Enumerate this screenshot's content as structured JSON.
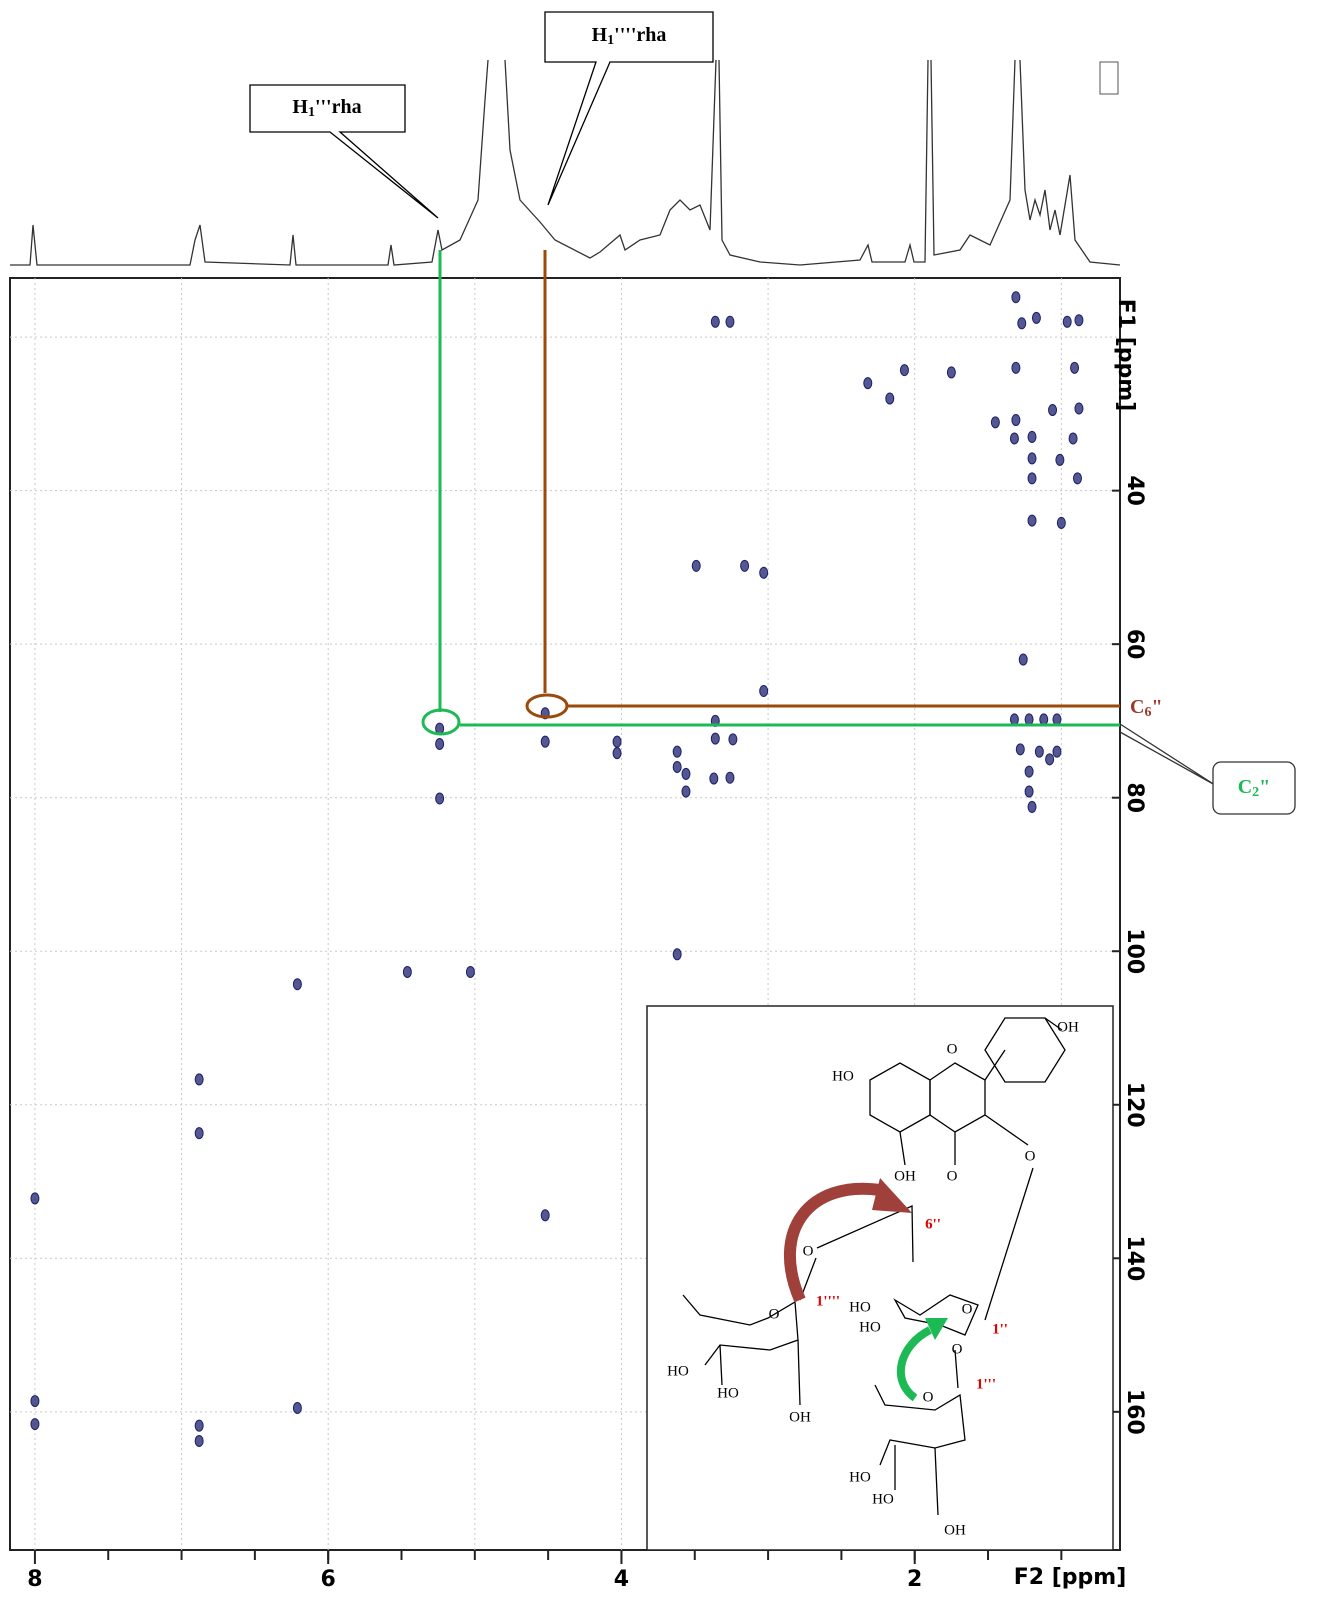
{
  "chart_data": {
    "type": "scatter",
    "x_label": "F2 [ppm]",
    "y_label": "F1 [ppm]",
    "xlim": [
      8.17,
      0.6
    ],
    "ylim": [
      12.3,
      178
    ],
    "xticks": [
      8,
      6,
      4,
      2
    ],
    "xminor": [
      7.5,
      7,
      6.5,
      6,
      5.5,
      5,
      4.5,
      4,
      3.5,
      3,
      2.5,
      2,
      1.5,
      1
    ],
    "xgrid": [
      8,
      7,
      6,
      5,
      4,
      3,
      2,
      1
    ],
    "yticks": [
      40,
      60,
      80,
      100,
      120,
      140,
      160
    ],
    "ygrid": [
      20,
      40,
      60,
      80,
      100,
      120,
      140,
      160
    ],
    "grid": true,
    "color": "#1b1f6b",
    "x": [
      5.24,
      5.24,
      5.24,
      4.52,
      4.52,
      3.36,
      3.26,
      3.49,
      3.16,
      3.03,
      3.03,
      3.36,
      3.36,
      3.24,
      4.03,
      4.03,
      3.62,
      3.62,
      3.56,
      3.56,
      3.37,
      3.26,
      2.32,
      2.17,
      2.07,
      1.75,
      1.31,
      1.27,
      1.17,
      0.96,
      0.88,
      0.91,
      1.31,
      1.06,
      0.88,
      1.31,
      1.2,
      0.92,
      1.2,
      1.01,
      0.89,
      1.2,
      1.2,
      1.0,
      1.45,
      1.32,
      1.32,
      1.22,
      1.12,
      1.03,
      1.28,
      1.15,
      1.03,
      1.22,
      1.08,
      1.22,
      1.2,
      1.26,
      3.62,
      5.46,
      5.03,
      6.21,
      6.88,
      6.88,
      8.0,
      4.52,
      6.21,
      8.0,
      8.0,
      6.88,
      6.88
    ],
    "y": [
      71,
      73,
      80.1,
      69,
      72.7,
      18,
      18,
      49.8,
      49.8,
      50.7,
      66.1,
      70,
      72.3,
      72.4,
      72.7,
      74.2,
      74,
      76,
      76.9,
      79.2,
      77.5,
      77.4,
      26,
      28,
      24.3,
      24.6,
      14.8,
      18.2,
      17.5,
      18,
      17.8,
      24,
      24,
      29.5,
      29.3,
      30.8,
      33,
      33.2,
      35.8,
      36,
      38.4,
      38.4,
      43.9,
      44.2,
      31.1,
      33.2,
      69.8,
      69.8,
      69.8,
      69.8,
      73.7,
      74,
      74,
      76.6,
      75,
      79.2,
      81.2,
      62,
      100.4,
      102.7,
      102.7,
      104.3,
      116.7,
      123.7,
      132.2,
      134.4,
      159.5,
      158.6,
      161.6,
      161.8,
      163.8
    ],
    "annotations": [
      {
        "base": "H",
        "sub": "1",
        "rest": "'''rha"
      },
      {
        "base": "H",
        "sub": "1",
        "rest": "''''rha"
      },
      {
        "base": "C",
        "sub": "6",
        "rest": "\""
      },
      {
        "base": "C",
        "sub": "2",
        "rest": "\""
      }
    ]
  },
  "structure": {
    "labels": [
      "HO",
      "OH",
      "O",
      "O",
      "OH",
      "O",
      "6''",
      "O",
      "1''''",
      "O",
      "HO",
      "HO",
      "OH",
      "O",
      "HO",
      "HO",
      "1''",
      "O",
      "O",
      "1'''",
      "HO",
      "HO",
      "OH"
    ]
  }
}
